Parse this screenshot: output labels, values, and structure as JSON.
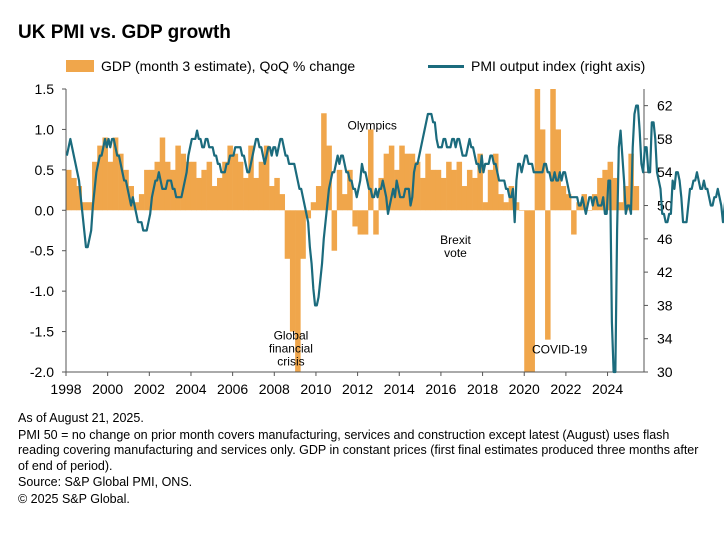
{
  "title": "UK PMI vs. GDP growth",
  "legend": {
    "gdp": "GDP (month 3 estimate), QoQ % change",
    "pmi": "PMI output index (right axis)"
  },
  "colors": {
    "gdp_bar": "#f0a64b",
    "pmi_line": "#1b6b7d"
  },
  "footer": {
    "asof": "As of August 21, 2025.",
    "note": "PMI 50 = no change on prior month covers manufacturing, services and construction except latest (August) uses flash reading covering manufacturing and services only. GDP in constant prices (first final estimates produced three months after of end of period).",
    "source": "Source: S&P Global PMI, ONS.",
    "copyright": "© 2025 S&P Global."
  },
  "chart_data": {
    "type": "bar+line",
    "legend_position": "top",
    "grid": false,
    "x_ticks": [
      "1998",
      "2000",
      "2002",
      "2004",
      "2006",
      "2008",
      "2010",
      "2012",
      "2014",
      "2016",
      "2018",
      "2020",
      "2022",
      "2024"
    ],
    "y_left": {
      "ticks": [
        "1.5",
        "1.0",
        "0.5",
        "0.0",
        "-0.5",
        "-1.0",
        "-1.5",
        "-2.0"
      ],
      "lim": [
        -2.0,
        1.5
      ]
    },
    "y_right": {
      "ticks": [
        "62",
        "58",
        "54",
        "50",
        "46",
        "42",
        "38",
        "34",
        "30"
      ],
      "lim": [
        30,
        64
      ]
    },
    "annotations": [
      {
        "lines": [
          "Global",
          "financial",
          "crisis"
        ],
        "x": 2008.8,
        "y": -1.6,
        "axis": "left"
      },
      {
        "lines": [
          "Olympics"
        ],
        "x": 2012.7,
        "y": 1.0,
        "axis": "left"
      },
      {
        "lines": [
          "Brexit",
          "vote"
        ],
        "x": 2016.7,
        "y": -0.42,
        "axis": "left"
      },
      {
        "lines": [
          "COVID-19"
        ],
        "x": 2021.7,
        "y": -1.77,
        "axis": "left"
      }
    ],
    "gdp_quarterly": {
      "start": "1998 Q1",
      "values": [
        0.5,
        0.4,
        0.3,
        0.1,
        0.1,
        0.6,
        0.8,
        0.9,
        0.6,
        0.9,
        0.7,
        0.5,
        0.3,
        0.1,
        0.2,
        0.5,
        0.5,
        0.6,
        0.9,
        0.6,
        0.5,
        0.8,
        0.7,
        0.6,
        0.6,
        0.4,
        0.5,
        0.6,
        0.3,
        0.4,
        0.6,
        0.8,
        0.7,
        0.6,
        0.4,
        0.8,
        0.4,
        0.6,
        0.8,
        0.3,
        0.4,
        0.2,
        -0.6,
        -1.5,
        -2.0,
        -0.6,
        -0.1,
        0.1,
        0.3,
        1.2,
        0.8,
        -0.5,
        0.5,
        0.2,
        0.5,
        -0.2,
        -0.3,
        -0.3,
        1.0,
        -0.3,
        0.4,
        0.7,
        0.8,
        0.5,
        0.8,
        0.7,
        0.7,
        0.6,
        0.4,
        0.7,
        0.5,
        0.5,
        0.4,
        0.6,
        0.5,
        0.6,
        0.3,
        0.5,
        0.4,
        0.7,
        0.1,
        0.5,
        0.7,
        0.2,
        0.1,
        0.3,
        0.1,
        0.0,
        -2.0,
        -2.0,
        1.5,
        1.0,
        -1.6,
        1.5,
        1.0,
        0.3,
        0.2,
        -0.3,
        0.1,
        0.2,
        0.0,
        0.2,
        0.4,
        0.5,
        0.6,
        0.4,
        0.1,
        0.3,
        0.7,
        0.3
      ]
    },
    "pmi_monthly": {
      "start": "1998-01",
      "values": [
        56,
        57,
        58,
        57,
        56,
        55,
        54,
        53,
        51,
        49,
        47,
        45,
        45,
        46,
        47,
        50,
        52,
        54,
        55,
        56,
        56,
        57,
        58,
        57,
        58,
        57,
        58,
        58,
        57,
        56,
        56,
        55,
        54,
        53,
        53,
        52,
        51,
        50,
        51,
        50,
        49,
        48,
        48,
        48,
        47,
        47,
        47,
        48,
        49,
        51,
        52,
        53,
        53,
        54,
        53,
        52,
        52,
        52,
        53,
        53,
        53,
        52,
        52,
        51,
        51,
        51,
        51,
        52,
        53,
        54,
        56,
        57,
        58,
        58,
        58,
        59,
        58,
        58,
        57,
        57,
        58,
        58,
        57,
        57,
        57,
        56,
        56,
        55,
        55,
        54,
        54,
        54,
        55,
        55,
        56,
        56,
        56,
        57,
        57,
        57,
        57,
        56,
        56,
        55,
        54,
        54,
        55,
        56,
        57,
        58,
        58,
        57,
        57,
        56,
        55,
        56,
        57,
        57,
        56,
        57,
        57,
        56,
        57,
        58,
        58,
        57,
        56,
        56,
        55,
        55,
        55,
        55,
        54,
        53,
        52,
        52,
        51,
        50,
        49,
        48,
        45,
        43,
        40,
        38,
        38,
        39,
        41,
        43,
        46,
        48,
        50,
        52,
        53,
        54,
        54,
        55,
        56,
        55,
        56,
        56,
        55,
        54,
        54,
        53,
        53,
        52,
        52,
        51,
        52,
        53,
        55,
        54,
        54,
        53,
        52,
        52,
        51,
        51,
        52,
        51,
        52,
        52,
        53,
        52,
        51,
        49,
        50,
        51,
        52,
        51,
        53,
        52,
        51,
        51,
        51,
        52,
        52,
        52,
        50,
        51,
        54,
        55,
        55,
        56,
        57,
        58,
        59,
        60,
        61,
        61,
        61,
        60,
        60,
        58,
        57,
        57,
        57,
        58,
        58,
        57,
        57,
        57,
        58,
        58,
        57,
        58,
        58,
        57,
        56,
        56,
        56,
        57,
        58,
        57,
        57,
        56,
        55,
        55,
        54,
        56,
        54,
        55,
        55,
        55,
        56,
        56,
        55,
        55,
        54,
        53,
        53,
        53,
        53,
        52,
        52,
        51,
        51,
        52,
        48,
        53,
        55,
        55,
        54,
        55,
        56,
        56,
        55,
        55,
        55,
        54,
        54,
        54,
        54,
        54,
        54,
        55,
        55,
        54,
        54,
        53,
        53,
        54,
        53,
        53,
        54,
        53,
        54,
        54,
        53,
        52,
        51,
        51,
        51,
        51,
        51,
        50,
        50,
        51,
        50,
        49,
        50,
        51,
        51,
        50,
        51,
        51,
        50,
        50,
        50,
        51,
        49,
        49,
        53,
        53,
        36,
        14,
        29,
        47,
        57,
        59,
        56,
        53,
        49,
        50,
        50,
        49,
        57,
        61,
        62,
        62,
        59,
        55,
        54,
        57,
        57,
        54,
        54,
        60,
        60,
        58,
        54,
        53,
        52,
        49,
        49,
        48,
        48,
        49,
        49,
        53,
        52,
        54,
        54,
        53,
        51,
        48,
        48,
        48,
        50,
        52,
        52,
        53,
        53,
        54,
        53,
        52,
        52,
        53,
        52,
        52,
        51,
        50,
        50,
        51,
        51,
        52,
        51,
        50,
        48,
        50,
        52,
        51,
        52,
        53
      ]
    }
  }
}
